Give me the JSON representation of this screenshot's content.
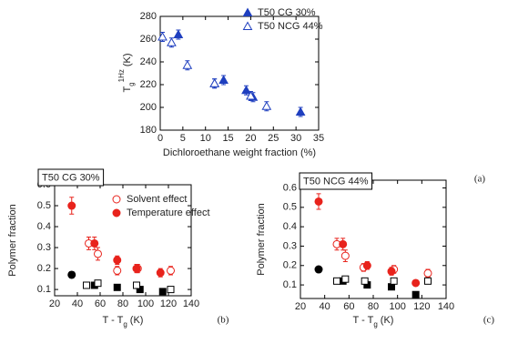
{
  "chart_data": [
    {
      "type": "scatter",
      "panel_label": "(a)",
      "xlabel": "Dichloroethane weight fraction (%)",
      "ylabel": {
        "main": "T",
        "sub": "g",
        "sup": "1Hz",
        "unit": "(K)"
      },
      "xlim": [
        0,
        35
      ],
      "xticks": [
        0,
        5,
        10,
        15,
        20,
        25,
        30,
        35
      ],
      "ylim": [
        180,
        280
      ],
      "yticks": [
        180,
        200,
        220,
        240,
        260,
        280
      ],
      "series": [
        {
          "name": "T50 CG 30%",
          "color": "#1f3fbf",
          "marker": "triangle",
          "filled": true,
          "x": [
            4,
            12,
            14,
            19,
            20.5,
            31
          ],
          "values": [
            264,
            221,
            224,
            215,
            209,
            196
          ],
          "yerr": [
            4,
            4,
            4,
            4,
            4,
            4
          ]
        },
        {
          "name": "T50 NCG 44%",
          "color": "#1f3fbf",
          "marker": "triangle",
          "filled": false,
          "x": [
            0.5,
            2.5,
            6,
            12,
            20,
            23.5
          ],
          "values": [
            262,
            257,
            237,
            221,
            210,
            201
          ],
          "yerr": [
            4,
            4,
            4,
            4,
            4,
            4
          ]
        }
      ]
    },
    {
      "type": "scatter",
      "title": "T50 CG 30%",
      "panel_label": "(b)",
      "xlabel": {
        "main": "T - T",
        "sub": "g",
        "unit": "(K)"
      },
      "ylabel": "Polymer fraction",
      "xlim": [
        20,
        140
      ],
      "xticks": [
        20,
        40,
        60,
        80,
        100,
        120,
        140
      ],
      "ylim": [
        0.07,
        0.6
      ],
      "yticks": [
        0.1,
        0.2,
        0.3,
        0.4,
        0.5,
        0.6
      ],
      "series": [
        {
          "name": "Solvent effect",
          "color": "#e8231c",
          "marker": "circle",
          "filled": false,
          "x": [
            50,
            58,
            75,
            93,
            122
          ],
          "values": [
            0.32,
            0.27,
            0.19,
            0.2,
            0.19
          ],
          "yerr": [
            0.03,
            0.03,
            0.02,
            0.02,
            0.02
          ]
        },
        {
          "name": "Temperature effect",
          "color": "#e8231c",
          "marker": "circle",
          "filled": true,
          "x": [
            35,
            55,
            75,
            92,
            113
          ],
          "values": [
            0.5,
            0.32,
            0.24,
            0.2,
            0.18
          ],
          "yerr": [
            0.04,
            0.03,
            0.02,
            0.02,
            0.02
          ]
        },
        {
          "color": "#000000",
          "marker": "circle",
          "filled": true,
          "x": [
            35
          ],
          "values": [
            0.17
          ],
          "yerr": [
            0.015
          ]
        },
        {
          "color": "#000000",
          "marker": "square",
          "filled": true,
          "x": [
            55,
            75,
            95,
            115
          ],
          "values": [
            0.12,
            0.11,
            0.1,
            0.09
          ],
          "yerr": [
            0.01,
            0.01,
            0.01,
            0.01
          ]
        },
        {
          "color": "#000000",
          "marker": "square",
          "filled": false,
          "x": [
            48,
            58,
            92,
            122
          ],
          "values": [
            0.12,
            0.13,
            0.12,
            0.1
          ],
          "yerr": [
            0.01,
            0.01,
            0.01,
            0.01
          ]
        }
      ]
    },
    {
      "type": "scatter",
      "title": "T50 NCG 44%",
      "panel_label": "(c)",
      "xlabel": {
        "main": "T - T",
        "sub": "g",
        "unit": "(K)"
      },
      "ylabel": "Polymer fraction",
      "xlim": [
        20,
        140
      ],
      "xticks": [
        20,
        40,
        60,
        80,
        100,
        120,
        140
      ],
      "ylim": [
        0.03,
        0.64
      ],
      "yticks": [
        0.1,
        0.2,
        0.3,
        0.4,
        0.5,
        0.6
      ],
      "series": [
        {
          "color": "#e8231c",
          "marker": "circle",
          "filled": false,
          "x": [
            50,
            57,
            72,
            97,
            125
          ],
          "values": [
            0.31,
            0.25,
            0.19,
            0.18,
            0.16
          ],
          "yerr": [
            0.03,
            0.03,
            0.02,
            0.02,
            0.02
          ]
        },
        {
          "color": "#e8231c",
          "marker": "circle",
          "filled": true,
          "x": [
            35,
            55,
            75,
            95,
            115
          ],
          "values": [
            0.53,
            0.31,
            0.2,
            0.17,
            0.11
          ],
          "yerr": [
            0.04,
            0.03,
            0.02,
            0.02,
            0.01
          ]
        },
        {
          "color": "#000000",
          "marker": "circle",
          "filled": true,
          "x": [
            35
          ],
          "values": [
            0.18
          ],
          "yerr": [
            0.015
          ]
        },
        {
          "color": "#000000",
          "marker": "square",
          "filled": true,
          "x": [
            55,
            75,
            95,
            115
          ],
          "values": [
            0.12,
            0.1,
            0.09,
            0.05
          ],
          "yerr": [
            0.01,
            0.01,
            0.01,
            0.01
          ]
        },
        {
          "color": "#000000",
          "marker": "square",
          "filled": false,
          "x": [
            50,
            57,
            73,
            97,
            125
          ],
          "values": [
            0.12,
            0.13,
            0.12,
            0.12,
            0.12
          ],
          "yerr": [
            0.01,
            0.01,
            0.01,
            0.01,
            0.01
          ]
        }
      ]
    }
  ]
}
